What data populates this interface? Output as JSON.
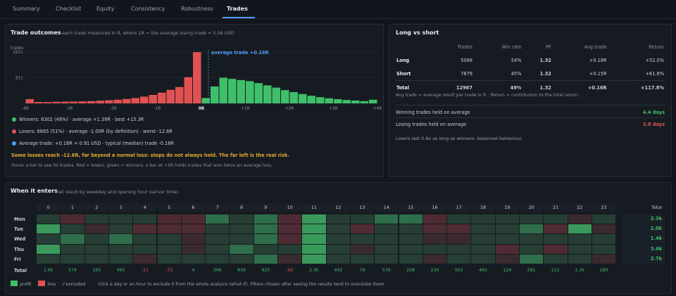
{
  "tabs": [
    "Summary",
    "Checklist",
    "Equity",
    "Consistency",
    "Robustness",
    "Trades"
  ],
  "active_tab": "Trades",
  "outcomes": {
    "title": "Trade outcomes",
    "subtitle": "each trade measured in R, where 1R = the average losing trade = 5.56 USD",
    "y_unit": "trades",
    "avg_label": "average trade +0.16R",
    "legend": [
      {
        "text": "Winners: 6302 (49%)  ·  average +1.39R  ·  best +15.3R",
        "color": "#3fbf6a"
      },
      {
        "text": "Losers: 6665 (51%)  ·  average -1.00R (by definition)  ·  worst -12.6R",
        "color": "#e05252"
      },
      {
        "text": "Average trade: +0.16R = 0.91 USD  ·  typical (median) trade -0.18R",
        "color": "#4e9bf5"
      }
    ],
    "warning": "Some losses reach -12.6R, far beyond a normal loss: stops do not always hold. The far left is the real risk.",
    "hint": "Hover a bar to see its trades. Red = losers, green = winners, a bar at +2R holds trades that won twice an average loss."
  },
  "chart_data": {
    "type": "bar",
    "title": "Trade outcomes",
    "ylabel": "trades",
    "yticks": [
      911,
      1821
    ],
    "ylim": [
      0,
      1900
    ],
    "xlim": [
      -4,
      4
    ],
    "x_ticks": [
      "-4R",
      "-3R",
      "-2R",
      "-1R",
      "0R",
      "+1R",
      "+2R",
      "+3R",
      "+4R"
    ],
    "bin_width_R": 0.2,
    "bin_starts": [
      -4.0,
      -3.8,
      -3.6,
      -3.4,
      -3.2,
      -3.0,
      -2.8,
      -2.6,
      -2.4,
      -2.2,
      -2.0,
      -1.8,
      -1.6,
      -1.4,
      -1.2,
      -1.0,
      -0.8,
      -0.6,
      -0.4,
      -0.2,
      0.0,
      0.2,
      0.4,
      0.6,
      0.8,
      1.0,
      1.2,
      1.4,
      1.6,
      1.8,
      2.0,
      2.2,
      2.4,
      2.6,
      2.8,
      3.0,
      3.2,
      3.4,
      3.6,
      3.8
    ],
    "values": [
      150,
      50,
      45,
      55,
      60,
      65,
      70,
      80,
      95,
      110,
      130,
      155,
      190,
      240,
      300,
      380,
      480,
      580,
      930,
      1821,
      190,
      600,
      911,
      870,
      830,
      790,
      720,
      640,
      560,
      470,
      400,
      330,
      270,
      220,
      180,
      150,
      120,
      100,
      80,
      130
    ],
    "loss_bins": 20,
    "average_R": 0.16,
    "colors": {
      "loss": "#e05252",
      "win": "#3fbf6a",
      "avg": "#4e9bf5"
    }
  },
  "long_short": {
    "title": "Long vs short",
    "columns": [
      "",
      "Trades",
      "Win rate",
      "PF",
      "Avg trade",
      "Return"
    ],
    "rows": [
      {
        "label": "Long",
        "trades": "5088",
        "win_rate": "54%",
        "pf": "1.32",
        "avg": "+0.18R",
        "ret": "+52.0%"
      },
      {
        "label": "Short",
        "trades": "7879",
        "win_rate": "45%",
        "pf": "1.32",
        "avg": "+0.15R",
        "ret": "+61.8%"
      },
      {
        "label": "Total",
        "trades": "12967",
        "win_rate": "49%",
        "pf": "1.32",
        "avg": "+0.16R",
        "ret": "+117.8%"
      }
    ],
    "note": "Avg trade = average result per trade in R  ·  Return = contribution to the total return.",
    "winning_held_label": "Winning trades held on average",
    "winning_held_value": "4.4 days",
    "losing_held_label": "Losing trades held on average",
    "losing_held_value": "3.8 days",
    "footer": "Losers last 0.9x as long as winners: balanced behaviour."
  },
  "heatmap": {
    "title": "When it enters",
    "subtitle": "net result by weekday and opening hour (server time)",
    "hours": [
      "0",
      "1",
      "2",
      "3",
      "4",
      "5",
      "6",
      "7",
      "8",
      "9",
      "10",
      "11",
      "12",
      "13",
      "14",
      "15",
      "16",
      "17",
      "18",
      "19",
      "20",
      "21",
      "22",
      "23"
    ],
    "total_label": "Total",
    "days": [
      "Mon",
      "Tue",
      "Wed",
      "Thu",
      "Fri"
    ],
    "day_totals": [
      "2.3k",
      "2.0k",
      "1.4k",
      "3.4k",
      "2.7k"
    ],
    "col_totals": [
      "1.6k",
      "574",
      "165",
      "495",
      "-21",
      "-72",
      "4",
      "396",
      "839",
      "925",
      "-82",
      "2.0k",
      "442",
      "79",
      "576",
      "208",
      "234",
      "501",
      "465",
      "124",
      "591",
      "221",
      "1.3k",
      "180"
    ],
    "values": [
      [
        1,
        -2,
        1,
        1,
        1,
        -2,
        -2,
        2,
        1,
        2,
        -2,
        3,
        1,
        1,
        2,
        2,
        -2,
        1,
        1,
        1,
        1,
        1,
        -1,
        1
      ],
      [
        3,
        1,
        -1,
        1,
        -2,
        -2,
        -2,
        1,
        1,
        2,
        -2,
        3,
        1,
        -2,
        1,
        1,
        -2,
        -2,
        1,
        1,
        2,
        -2,
        3,
        -1
      ],
      [
        1,
        2,
        1,
        2,
        1,
        1,
        -1,
        1,
        1,
        2,
        -2,
        3,
        1,
        1,
        1,
        1,
        -1,
        -1,
        1,
        1,
        1,
        1,
        1,
        1
      ],
      [
        3,
        1,
        1,
        1,
        1,
        1,
        -1,
        1,
        2,
        1,
        1,
        3,
        1,
        -1,
        1,
        1,
        1,
        1,
        1,
        -2,
        1,
        -2,
        1,
        1
      ],
      [
        1,
        1,
        1,
        1,
        -1,
        1,
        1,
        1,
        1,
        2,
        -1,
        3,
        1,
        1,
        1,
        1,
        -1,
        1,
        1,
        -1,
        2,
        1,
        1,
        -1
      ]
    ],
    "footer": {
      "profit": "profit",
      "loss": "loss",
      "excluded": "excluded",
      "text": "Click a day or an hour to exclude it from the whole analysis (what-if). Filters chosen after seeing the results tend to overstate them."
    }
  }
}
